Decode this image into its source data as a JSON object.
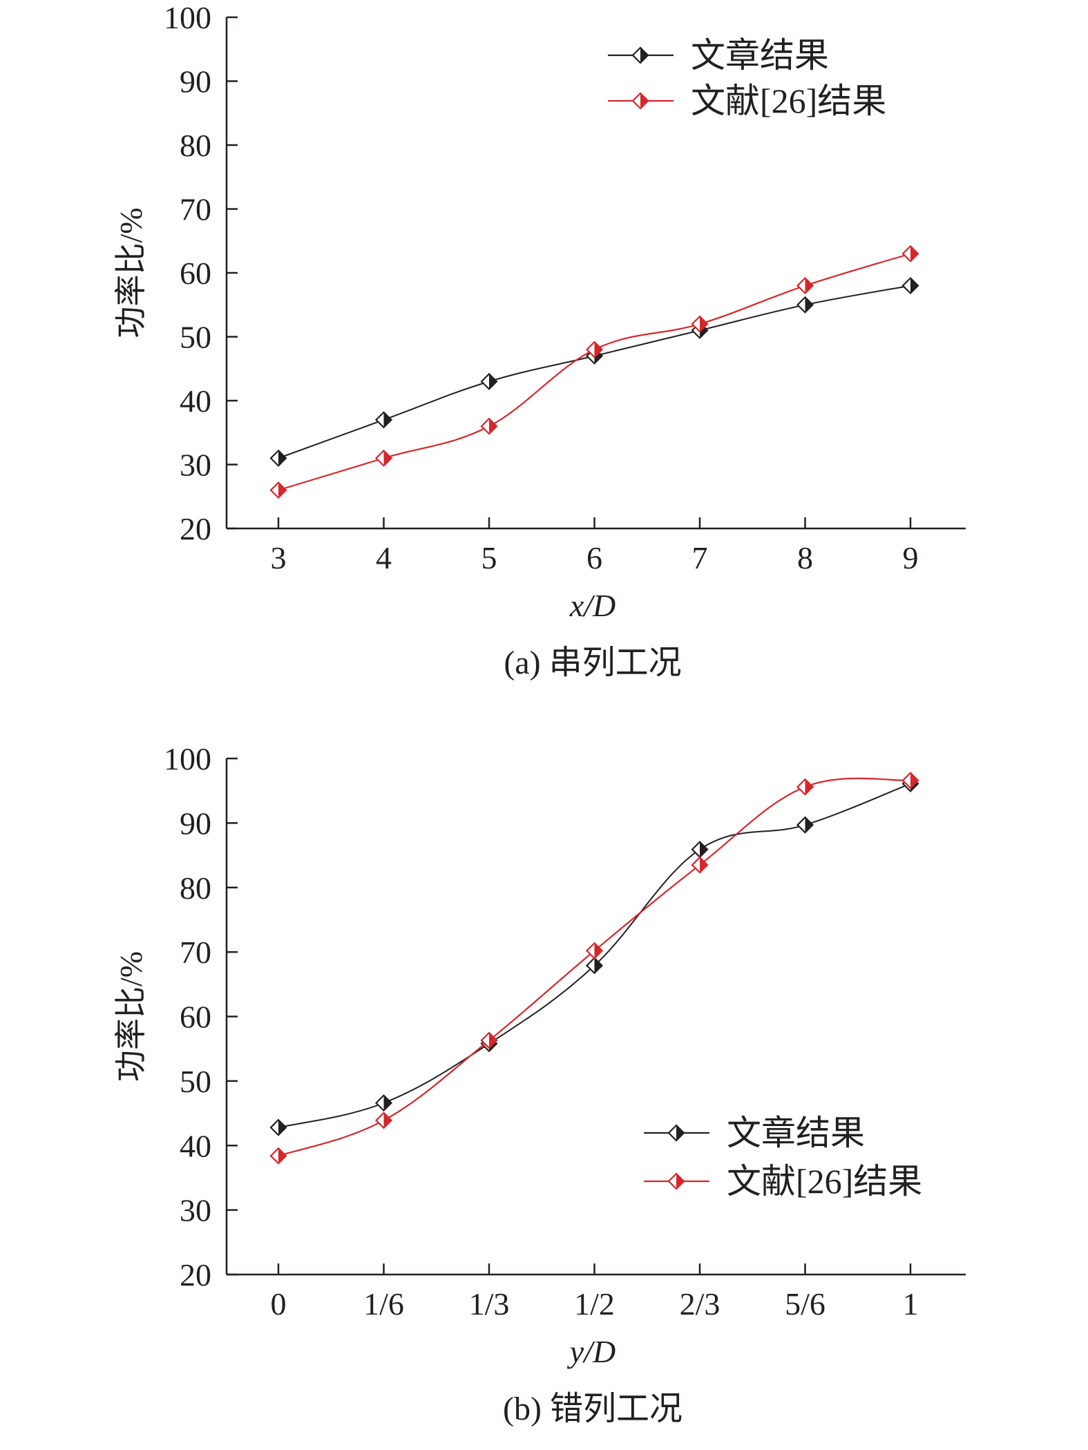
{
  "colors": {
    "series_black": "#231f20",
    "series_red": "#d7262b"
  },
  "chart_data": [
    {
      "type": "line",
      "caption": "(a) 串列工况",
      "xlabel": "x/D",
      "ylabel": "功率比/%",
      "categories": [
        "3",
        "4",
        "5",
        "6",
        "7",
        "8",
        "9"
      ],
      "ylim": [
        20,
        100
      ],
      "yticks": [
        "20",
        "30",
        "40",
        "50",
        "60",
        "70",
        "80",
        "90",
        "100"
      ],
      "legend_position": "top-right",
      "series": [
        {
          "name": "文章结果",
          "values": [
            31,
            37,
            43,
            47,
            51,
            55,
            58
          ]
        },
        {
          "name": "文献[26]结果",
          "values": [
            26,
            31,
            36,
            48,
            52,
            58,
            63
          ]
        }
      ]
    },
    {
      "type": "line",
      "caption": "(b) 错列工况",
      "xlabel": "y/D",
      "ylabel": "功率比/%",
      "categories": [
        "0",
        "1/6",
        "1/3",
        "1/2",
        "2/3",
        "5/6",
        "1"
      ],
      "ylim": [
        20,
        100
      ],
      "yticks": [
        "20",
        "30",
        "40",
        "50",
        "60",
        "70",
        "80",
        "90",
        "100"
      ],
      "legend_position": "bottom-right",
      "series": [
        {
          "name": "文章结果",
          "values": [
            42.8,
            46.6,
            55.8,
            67.9,
            85.9,
            89.7,
            96.1
          ]
        },
        {
          "name": "文献[26]结果",
          "values": [
            38.4,
            43.9,
            56.3,
            70.2,
            83.5,
            95.6,
            96.6
          ]
        }
      ]
    }
  ]
}
